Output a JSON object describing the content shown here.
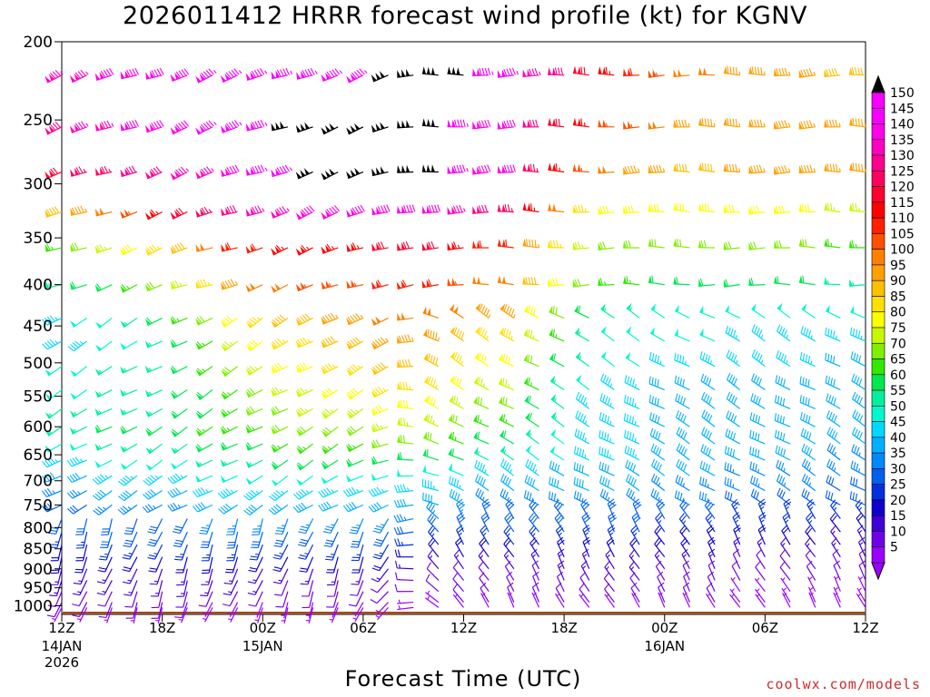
{
  "title": "2026011412 HRRR forecast wind profile (kt) for KGNV",
  "credit": "coolwx.com/models",
  "chart_data": {
    "type": "wind-barb time-height",
    "title": "2026011412 HRRR forecast wind profile (kt) for KGNV",
    "xlabel": "Forecast Time (UTC)",
    "ylabel": "",
    "y_axis": {
      "scale": "pressure",
      "invert": true,
      "ylim": [
        1025,
        200
      ],
      "ticks": [
        200,
        250,
        300,
        350,
        400,
        450,
        500,
        550,
        600,
        650,
        700,
        750,
        800,
        850,
        900,
        950,
        1000
      ]
    },
    "x_axis": {
      "xlim_hours": [
        0,
        48
      ],
      "ticks": [
        {
          "label": "12Z",
          "sub": [
            "14JAN",
            "2026"
          ]
        },
        {
          "label": "18Z",
          "sub": []
        },
        {
          "label": "00Z",
          "sub": [
            "15JAN"
          ]
        },
        {
          "label": "06Z",
          "sub": []
        },
        {
          "label": "12Z",
          "sub": []
        },
        {
          "label": "18Z",
          "sub": []
        },
        {
          "label": "00Z",
          "sub": [
            "16JAN"
          ]
        },
        {
          "label": "06Z",
          "sub": []
        },
        {
          "label": "12Z",
          "sub": []
        }
      ]
    },
    "colorbar": {
      "units": "kt",
      "labels": [
        5,
        10,
        15,
        20,
        25,
        30,
        35,
        40,
        45,
        50,
        55,
        60,
        65,
        70,
        75,
        80,
        85,
        90,
        95,
        100,
        105,
        110,
        115,
        120,
        125,
        130,
        135,
        140,
        145,
        150
      ],
      "colors": [
        "#9c00ff",
        "#7000e8",
        "#4000d8",
        "#1000d0",
        "#0030e0",
        "#0060f0",
        "#0088ff",
        "#00b0ff",
        "#00d8ff",
        "#00f8d0",
        "#00f0a0",
        "#00e850",
        "#30e800",
        "#80f000",
        "#c8f800",
        "#ffff00",
        "#ffe000",
        "#ffc000",
        "#ffa000",
        "#ff8000",
        "#ff5000",
        "#ff2000",
        "#ff0000",
        "#ff0030",
        "#ff0060",
        "#ff0090",
        "#ff00c0",
        "#ff00e8",
        "#f800ff",
        "#000000"
      ]
    },
    "levels_hpa": [
      220,
      255,
      290,
      325,
      360,
      400,
      440,
      470,
      505,
      540,
      570,
      600,
      630,
      660,
      690,
      720,
      750,
      780,
      810,
      840,
      870,
      900,
      930,
      960,
      990,
      1005
    ],
    "hours_step": 1.5,
    "speed_kt_profile": {
      "220": [
        135,
        140,
        145,
        145,
        150,
        145,
        120,
        100,
        95,
        90
      ],
      "255": [
        130,
        140,
        145,
        150,
        150,
        140,
        110,
        95,
        95,
        95
      ],
      "290": [
        120,
        130,
        140,
        150,
        150,
        140,
        100,
        90,
        95,
        95
      ],
      "325": [
        90,
        110,
        130,
        140,
        140,
        130,
        80,
        80,
        80,
        75
      ],
      "360": [
        65,
        80,
        110,
        115,
        120,
        110,
        70,
        70,
        70,
        65
      ],
      "400": [
        55,
        65,
        95,
        105,
        110,
        100,
        65,
        60,
        60,
        55
      ],
      "440": [
        45,
        55,
        80,
        95,
        100,
        95,
        55,
        50,
        50,
        50
      ],
      "470": [
        45,
        50,
        75,
        90,
        95,
        85,
        50,
        50,
        45,
        45
      ],
      "505": [
        50,
        55,
        70,
        85,
        90,
        80,
        50,
        45,
        45,
        40
      ],
      "540": [
        50,
        55,
        65,
        80,
        85,
        75,
        45,
        40,
        40,
        40
      ],
      "570": [
        55,
        55,
        65,
        75,
        80,
        70,
        45,
        40,
        40,
        40
      ],
      "600": [
        55,
        60,
        65,
        70,
        75,
        65,
        45,
        40,
        40,
        40
      ],
      "630": [
        50,
        55,
        60,
        65,
        70,
        60,
        45,
        40,
        40,
        40
      ],
      "660": [
        45,
        50,
        55,
        60,
        60,
        55,
        45,
        40,
        40,
        35
      ],
      "690": [
        40,
        45,
        50,
        50,
        50,
        45,
        40,
        40,
        35,
        35
      ],
      "720": [
        35,
        40,
        45,
        45,
        45,
        40,
        40,
        35,
        35,
        30
      ],
      "750": [
        30,
        35,
        40,
        40,
        40,
        35,
        35,
        35,
        30,
        30
      ],
      "780": [
        30,
        30,
        35,
        35,
        35,
        30,
        30,
        30,
        25,
        25
      ],
      "810": [
        25,
        30,
        30,
        30,
        30,
        30,
        30,
        25,
        25,
        20
      ],
      "840": [
        20,
        25,
        25,
        25,
        25,
        25,
        25,
        20,
        20,
        15
      ],
      "870": [
        20,
        20,
        20,
        20,
        20,
        20,
        20,
        20,
        15,
        15
      ],
      "900": [
        15,
        15,
        15,
        15,
        15,
        15,
        15,
        15,
        10,
        10
      ],
      "930": [
        15,
        15,
        15,
        10,
        10,
        10,
        15,
        10,
        10,
        10
      ],
      "960": [
        10,
        10,
        10,
        10,
        10,
        10,
        10,
        10,
        5,
        5
      ],
      "990": [
        10,
        10,
        5,
        5,
        5,
        10,
        10,
        10,
        5,
        5
      ],
      "1005": [
        5,
        5,
        5,
        5,
        5,
        5,
        5,
        5,
        5,
        5
      ]
    },
    "direction_deg_profile": {
      "upper_before_front": 250,
      "upper_after_front": 270,
      "mid_before_front": 240,
      "mid_after_front": 300,
      "low_before_front": 200,
      "low_after_front": 330,
      "front_hour": 21
    },
    "surface_pressure_hpa": 1017
  }
}
